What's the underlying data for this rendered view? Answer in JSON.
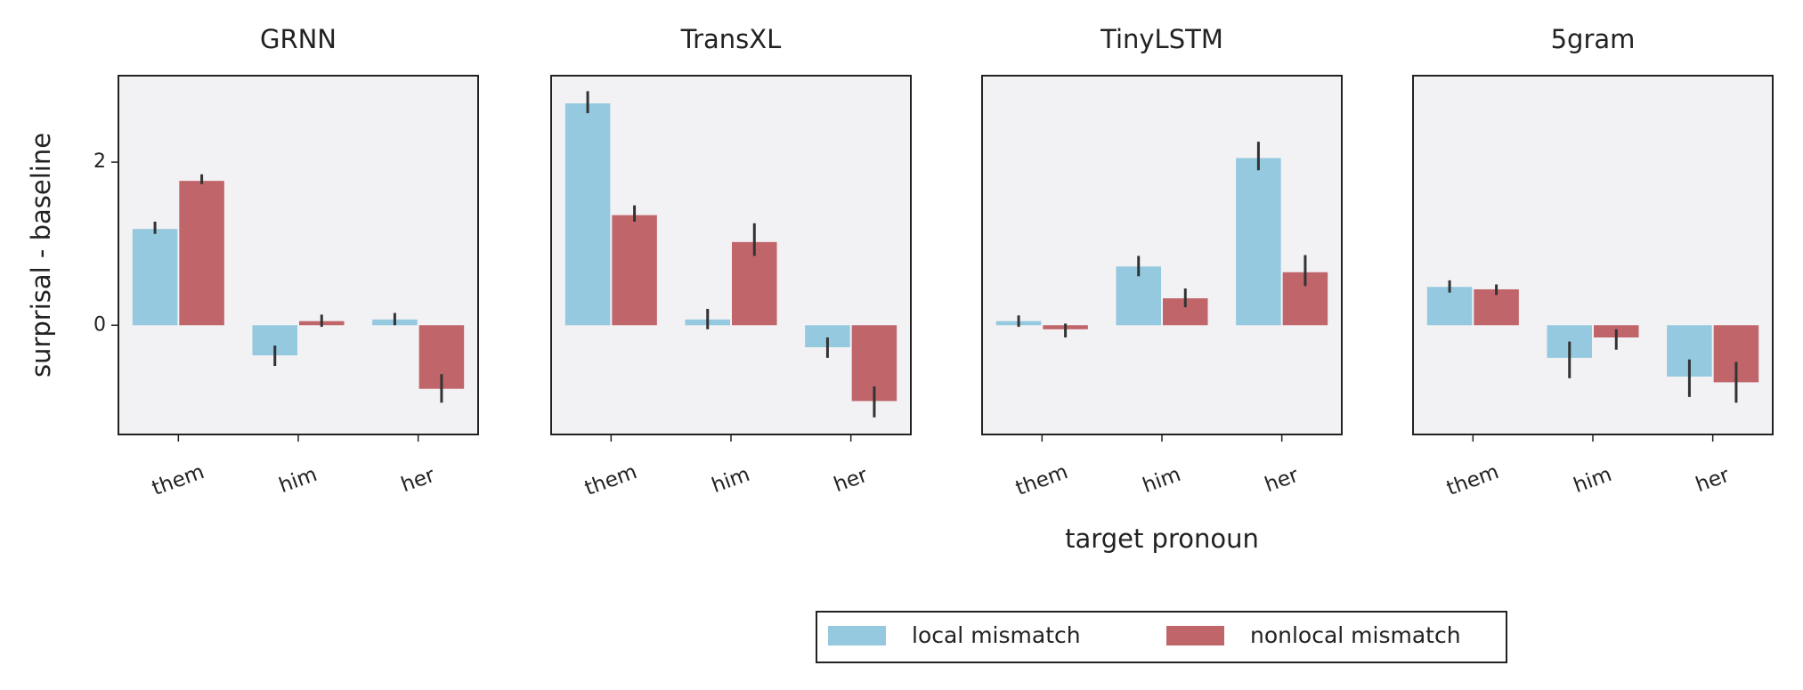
{
  "chart_data": [
    {
      "type": "bar",
      "title": "GRNN",
      "ylabel": "surprisal - baseline",
      "categories": [
        "them",
        "him",
        "her"
      ],
      "series": [
        {
          "name": "local mismatch",
          "color": "#94c9df",
          "values": [
            1.18,
            -0.37,
            0.07
          ],
          "ci": [
            [
              1.12,
              1.27
            ],
            [
              -0.5,
              -0.25
            ],
            [
              0.0,
              0.15
            ]
          ]
        },
        {
          "name": "nonlocal mismatch",
          "color": "#c0666a",
          "values": [
            1.77,
            0.05,
            -0.78
          ],
          "ci": [
            [
              1.73,
              1.85
            ],
            [
              -0.02,
              0.13
            ],
            [
              -0.95,
              -0.6
            ]
          ]
        }
      ],
      "ylim": [
        -1.34,
        3.06
      ],
      "yticks": [
        0,
        2
      ]
    },
    {
      "type": "bar",
      "title": "TransXL",
      "categories": [
        "them",
        "him",
        "her"
      ],
      "series": [
        {
          "name": "local mismatch",
          "color": "#94c9df",
          "values": [
            2.72,
            0.07,
            -0.27
          ],
          "ci": [
            [
              2.6,
              2.87
            ],
            [
              -0.05,
              0.2
            ],
            [
              -0.4,
              -0.15
            ]
          ]
        },
        {
          "name": "nonlocal mismatch",
          "color": "#c0666a",
          "values": [
            1.35,
            1.02,
            -0.93
          ],
          "ci": [
            [
              1.27,
              1.47
            ],
            [
              0.85,
              1.25
            ],
            [
              -1.13,
              -0.75
            ]
          ]
        }
      ],
      "ylim": [
        -1.34,
        3.06
      ]
    },
    {
      "type": "bar",
      "title": "TinyLSTM",
      "xlabel": "target pronoun",
      "categories": [
        "them",
        "him",
        "her"
      ],
      "series": [
        {
          "name": "local mismatch",
          "color": "#94c9df",
          "values": [
            0.05,
            0.72,
            2.05
          ],
          "ci": [
            [
              -0.02,
              0.12
            ],
            [
              0.6,
              0.85
            ],
            [
              1.9,
              2.25
            ]
          ]
        },
        {
          "name": "nonlocal mismatch",
          "color": "#c0666a",
          "values": [
            -0.05,
            0.33,
            0.65
          ],
          "ci": [
            [
              -0.15,
              0.02
            ],
            [
              0.22,
              0.45
            ],
            [
              0.48,
              0.86
            ]
          ]
        }
      ],
      "ylim": [
        -1.34,
        3.06
      ]
    },
    {
      "type": "bar",
      "title": "5gram",
      "categories": [
        "them",
        "him",
        "her"
      ],
      "series": [
        {
          "name": "local mismatch",
          "color": "#94c9df",
          "values": [
            0.47,
            -0.4,
            -0.63
          ],
          "ci": [
            [
              0.4,
              0.55
            ],
            [
              -0.65,
              -0.2
            ],
            [
              -0.88,
              -0.42
            ]
          ]
        },
        {
          "name": "nonlocal mismatch",
          "color": "#c0666a",
          "values": [
            0.44,
            -0.15,
            -0.7
          ],
          "ci": [
            [
              0.37,
              0.5
            ],
            [
              -0.3,
              -0.05
            ],
            [
              -0.95,
              -0.45
            ]
          ]
        }
      ],
      "ylim": [
        -1.34,
        3.06
      ]
    }
  ]
}
